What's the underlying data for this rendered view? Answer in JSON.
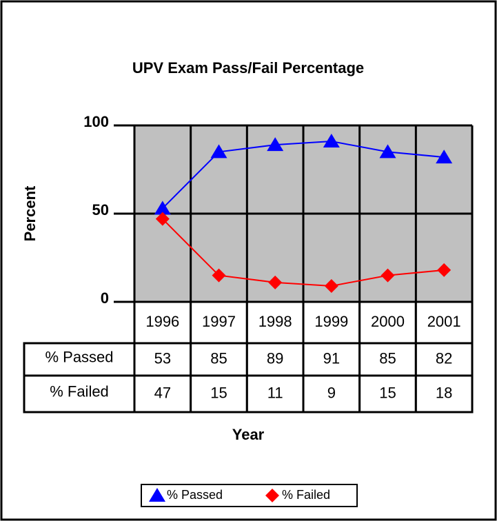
{
  "chart_data": {
    "type": "line",
    "title": "UPV Exam Pass/Fail Percentage",
    "x_label": "Year",
    "y_label": "Percent",
    "categories": [
      "1996",
      "1997",
      "1998",
      "1999",
      "2000",
      "2001"
    ],
    "series": [
      {
        "name": "% Passed",
        "color": "#0000ff",
        "marker": "triangle",
        "values": [
          53,
          85,
          89,
          91,
          85,
          82
        ]
      },
      {
        "name": "% Failed",
        "color": "#ff0000",
        "marker": "diamond",
        "values": [
          47,
          15,
          11,
          9,
          15,
          18
        ]
      }
    ],
    "ylim": [
      0,
      100
    ],
    "yticks": [
      0,
      50,
      100
    ],
    "grid": true,
    "legend": "bottom"
  }
}
